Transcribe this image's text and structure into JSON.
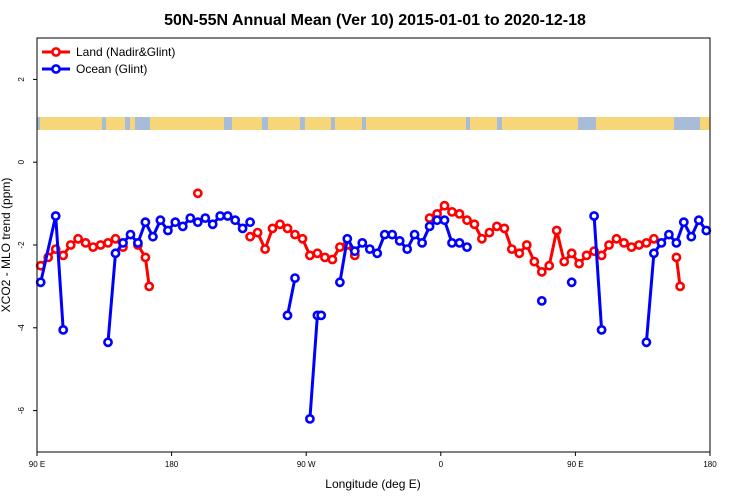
{
  "chart_data": {
    "type": "line",
    "title": "50N-55N Annual Mean (Ver 10)   2015-01-01 to 2020-12-18",
    "xlabel": "Longitude (deg E)",
    "ylabel": "XCO2 - MLO trend (ppm)",
    "x_ticks": [
      {
        "value": 90,
        "label": "90 E"
      },
      {
        "value": 180,
        "label": "180"
      },
      {
        "value": 270,
        "label": "90 W"
      },
      {
        "value": 360,
        "label": "0"
      },
      {
        "value": 450,
        "label": "90 E"
      },
      {
        "value": 540,
        "label": "180"
      }
    ],
    "y_ticks": [
      {
        "value": 2,
        "label": "2"
      },
      {
        "value": 0,
        "label": "0"
      },
      {
        "value": -2,
        "label": "-2"
      },
      {
        "value": -4,
        "label": "-4"
      },
      {
        "value": -6,
        "label": "-6"
      }
    ],
    "xlim": [
      90,
      540
    ],
    "ylim": [
      -7,
      3
    ],
    "grid": false,
    "legend_position": "top-left",
    "map_strip": {
      "ocean_color": "#a7bcd9",
      "land_color": "#f7d679"
    },
    "series": [
      {
        "name": "Land (Nadir&Glint)",
        "color": "#ff0000",
        "points": [
          [
            92.5,
            -2.5
          ],
          [
            97.5,
            -2.3
          ],
          [
            102.5,
            -2.1
          ],
          [
            107.5,
            -2.25
          ],
          [
            112.5,
            -2.0
          ],
          [
            117.5,
            -1.85
          ],
          [
            122.5,
            -1.95
          ],
          [
            127.5,
            -2.05
          ],
          [
            132.5,
            -2.0
          ],
          [
            137.5,
            -1.95
          ],
          [
            142.5,
            -1.85
          ],
          [
            147.5,
            -2.05
          ],
          null,
          [
            157.5,
            -2.0
          ],
          [
            162.5,
            -2.3
          ],
          [
            165,
            -3.0
          ],
          null,
          [
            197.5,
            -0.75
          ],
          null,
          [
            232.5,
            -1.8
          ],
          [
            237.5,
            -1.7
          ],
          [
            242.5,
            -2.1
          ],
          [
            247.5,
            -1.6
          ],
          [
            252.5,
            -1.5
          ],
          [
            257.5,
            -1.6
          ],
          [
            262.5,
            -1.75
          ],
          [
            267.5,
            -1.85
          ],
          [
            272.5,
            -2.25
          ],
          [
            277.5,
            -2.2
          ],
          [
            282.5,
            -2.3
          ],
          [
            287.5,
            -2.35
          ],
          [
            292.5,
            -2.05
          ],
          [
            297.5,
            -2.0
          ],
          [
            302.5,
            -2.25
          ],
          null,
          [
            352.5,
            -1.35
          ],
          [
            357.5,
            -1.25
          ],
          [
            362.5,
            -1.05
          ],
          [
            367.5,
            -1.2
          ],
          [
            372.5,
            -1.25
          ],
          [
            377.5,
            -1.4
          ],
          [
            382.5,
            -1.5
          ],
          [
            387.5,
            -1.85
          ],
          [
            392.5,
            -1.7
          ],
          [
            397.5,
            -1.55
          ],
          [
            402.5,
            -1.6
          ],
          [
            407.5,
            -2.1
          ],
          [
            412.5,
            -2.2
          ],
          [
            417.5,
            -2.0
          ],
          [
            422.5,
            -2.4
          ],
          [
            427.5,
            -2.65
          ],
          [
            432.5,
            -2.5
          ],
          [
            437.5,
            -1.65
          ],
          [
            442.5,
            -2.4
          ],
          [
            447.5,
            -2.2
          ],
          [
            452.5,
            -2.45
          ],
          [
            457.5,
            -2.25
          ],
          [
            462.5,
            -2.15
          ],
          [
            467.5,
            -2.25
          ],
          [
            472.5,
            -2.0
          ],
          [
            477.5,
            -1.85
          ],
          [
            482.5,
            -1.95
          ],
          [
            487.5,
            -2.05
          ],
          [
            492.5,
            -2.0
          ],
          [
            497.5,
            -1.95
          ],
          [
            502.5,
            -1.85
          ],
          null,
          [
            517.5,
            -2.3
          ],
          [
            520,
            -3.0
          ]
        ]
      },
      {
        "name": "Ocean (Glint)",
        "color": "#0000ff",
        "points": [
          [
            92.5,
            -2.9
          ],
          [
            102.5,
            -1.3
          ],
          [
            107.5,
            -4.05
          ],
          null,
          [
            137.5,
            -4.35
          ],
          [
            142.5,
            -2.2
          ],
          [
            147.5,
            -1.95
          ],
          [
            152.5,
            -1.75
          ],
          [
            157.5,
            -1.95
          ],
          [
            162.5,
            -1.45
          ],
          [
            167.5,
            -1.8
          ],
          [
            172.5,
            -1.4
          ],
          [
            177.5,
            -1.65
          ],
          [
            182.5,
            -1.45
          ],
          [
            187.5,
            -1.55
          ],
          [
            192.5,
            -1.35
          ],
          [
            197.5,
            -1.45
          ],
          [
            202.5,
            -1.35
          ],
          [
            207.5,
            -1.5
          ],
          [
            212.5,
            -1.3
          ],
          [
            217.5,
            -1.3
          ],
          [
            222.5,
            -1.4
          ],
          [
            227.5,
            -1.6
          ],
          [
            232.5,
            -1.45
          ],
          null,
          [
            257.5,
            -3.7
          ],
          [
            262.5,
            -2.8
          ],
          null,
          [
            272.5,
            -6.2
          ],
          [
            277.5,
            -3.7
          ],
          [
            280,
            -3.7
          ],
          null,
          [
            292.5,
            -2.9
          ],
          [
            297.5,
            -1.85
          ],
          [
            302.5,
            -2.15
          ],
          [
            307.5,
            -1.95
          ],
          [
            312.5,
            -2.1
          ],
          [
            317.5,
            -2.2
          ],
          [
            322.5,
            -1.75
          ],
          [
            327.5,
            -1.75
          ],
          [
            332.5,
            -1.9
          ],
          [
            337.5,
            -2.1
          ],
          [
            342.5,
            -1.75
          ],
          [
            347.5,
            -1.95
          ],
          [
            352.5,
            -1.55
          ],
          [
            357.5,
            -1.4
          ],
          [
            362.5,
            -1.4
          ],
          [
            367.5,
            -1.95
          ],
          [
            372.5,
            -1.95
          ],
          [
            377.5,
            -2.05
          ],
          null,
          [
            427.5,
            -3.35
          ],
          null,
          [
            447.5,
            -2.9
          ],
          null,
          [
            462.5,
            -1.3
          ],
          [
            467.5,
            -4.05
          ],
          null,
          [
            497.5,
            -4.35
          ],
          [
            502.5,
            -2.2
          ],
          [
            507.5,
            -1.95
          ],
          [
            512.5,
            -1.75
          ],
          [
            517.5,
            -1.95
          ],
          [
            522.5,
            -1.45
          ],
          [
            527.5,
            -1.8
          ],
          [
            532.5,
            -1.4
          ],
          [
            537.5,
            -1.65
          ]
        ]
      }
    ]
  }
}
